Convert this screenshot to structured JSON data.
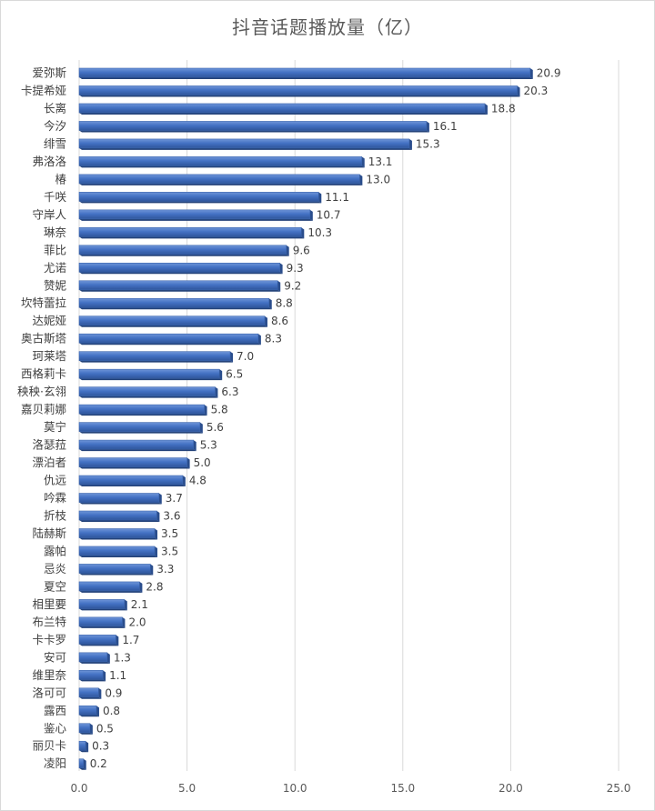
{
  "chart_data": {
    "type": "bar",
    "orientation": "horizontal",
    "title": "抖音话题播放量（亿）",
    "xlim": [
      0,
      25
    ],
    "x_ticks": [
      "0.0",
      "5.0",
      "10.0",
      "15.0",
      "20.0",
      "25.0"
    ],
    "gridlines": "vertical",
    "bar_color": "#4472c4",
    "categories": [
      "爱弥斯",
      "卡提希娅",
      "长离",
      "今汐",
      "绯雪",
      "弗洛洛",
      "椿",
      "千咲",
      "守岸人",
      "琳奈",
      "菲比",
      "尤诺",
      "赞妮",
      "坎特蕾拉",
      "达妮娅",
      "奥古斯塔",
      "珂莱塔",
      "西格莉卡",
      "秧秧·玄翎",
      "嘉贝莉娜",
      "莫宁",
      "洛瑟菈",
      "漂泊者",
      "仇远",
      "吟霖",
      "折枝",
      "陆赫斯",
      "露帕",
      "忌炎",
      "夏空",
      "相里要",
      "布兰特",
      "卡卡罗",
      "安可",
      "维里奈",
      "洛可可",
      "露西",
      "鉴心",
      "丽贝卡",
      "凌阳"
    ],
    "values": [
      20.9,
      20.3,
      18.8,
      16.1,
      15.3,
      13.1,
      13.0,
      11.1,
      10.7,
      10.3,
      9.6,
      9.3,
      9.2,
      8.8,
      8.6,
      8.3,
      7.0,
      6.5,
      6.3,
      5.8,
      5.6,
      5.3,
      5.0,
      4.8,
      3.7,
      3.6,
      3.5,
      3.5,
      3.3,
      2.8,
      2.1,
      2.0,
      1.7,
      1.3,
      1.1,
      0.9,
      0.8,
      0.5,
      0.3,
      0.2
    ],
    "value_labels": [
      "20.9",
      "20.3",
      "18.8",
      "16.1",
      "15.3",
      "13.1",
      "13.0",
      "11.1",
      "10.7",
      "10.3",
      "9.6",
      "9.3",
      "9.2",
      "8.8",
      "8.6",
      "8.3",
      "7.0",
      "6.5",
      "6.3",
      "5.8",
      "5.6",
      "5.3",
      "5.0",
      "4.8",
      "3.7",
      "3.6",
      "3.5",
      "3.5",
      "3.3",
      "2.8",
      "2.1",
      "2.0",
      "1.7",
      "1.3",
      "1.1",
      "0.9",
      "0.8",
      "0.5",
      "0.3",
      "0.2"
    ]
  }
}
